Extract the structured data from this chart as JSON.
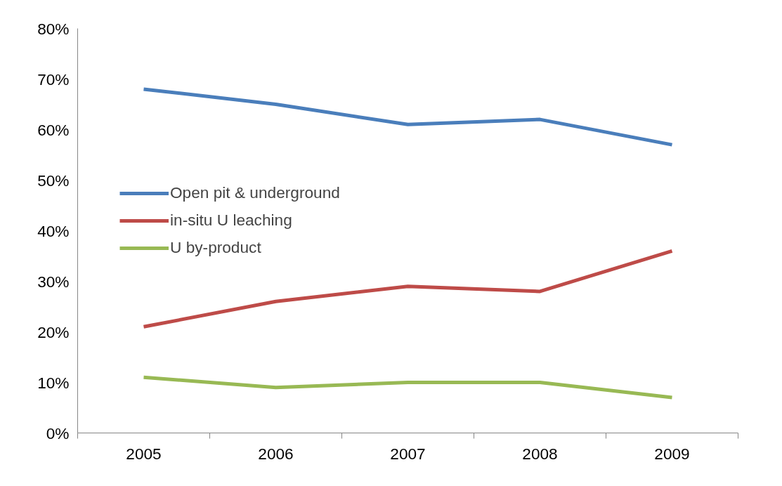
{
  "chart_data": {
    "type": "line",
    "categories": [
      "2005",
      "2006",
      "2007",
      "2008",
      "2009"
    ],
    "series": [
      {
        "name": "Open pit & underground",
        "color": "#4a7ebb",
        "values": [
          68,
          65,
          61,
          62,
          57
        ]
      },
      {
        "name": "in-situ U leaching",
        "color": "#be4b48",
        "values": [
          21,
          26,
          29,
          28,
          36
        ]
      },
      {
        "name": "U by-product",
        "color": "#98b954",
        "values": [
          11,
          9,
          10,
          10,
          7
        ]
      }
    ],
    "ylim": [
      0,
      80
    ],
    "yticks": [
      {
        "value": 0,
        "label": "0%"
      },
      {
        "value": 10,
        "label": "10%"
      },
      {
        "value": 20,
        "label": "20%"
      },
      {
        "value": 30,
        "label": "30%"
      },
      {
        "value": 40,
        "label": "40%"
      },
      {
        "value": 50,
        "label": "50%"
      },
      {
        "value": 60,
        "label": "60%"
      },
      {
        "value": 70,
        "label": "70%"
      },
      {
        "value": 80,
        "label": "80%"
      }
    ],
    "grid": false,
    "legend": "left",
    "marker": "none",
    "line_style": "solid"
  }
}
